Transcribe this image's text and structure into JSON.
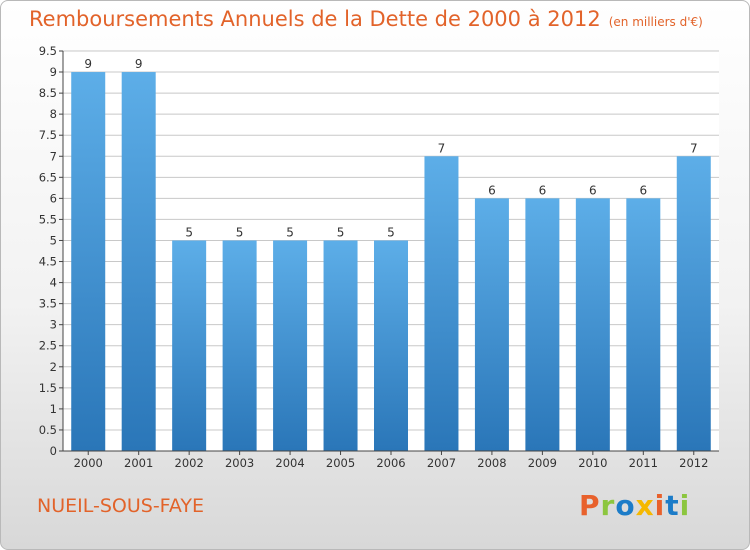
{
  "header": {
    "title": "Remboursements Annuels de la Dette de 2000 à 2012",
    "subtitle": "(en milliers d'€)"
  },
  "footer": {
    "commune": "NUEIL-SOUS-FAYE",
    "brand": "Proxiti"
  },
  "colors": {
    "title": "#e2632a",
    "bar_top": "#5daee8",
    "bar_bottom": "#2a76b8",
    "grid": "#c8c8c8",
    "brand_letters": [
      "#e8612c",
      "#8cc63f",
      "#1c7cc8",
      "#f5b800",
      "#e8612c",
      "#1c7cc8",
      "#8cc63f"
    ]
  },
  "chart_data": {
    "type": "bar",
    "categories": [
      "2000",
      "2001",
      "2002",
      "2003",
      "2004",
      "2005",
      "2006",
      "2007",
      "2008",
      "2009",
      "2010",
      "2011",
      "2012"
    ],
    "values": [
      9,
      9,
      5,
      5,
      5,
      5,
      5,
      7,
      6,
      6,
      6,
      6,
      7
    ],
    "data_labels": [
      "9",
      "9",
      "5",
      "5",
      "5",
      "5",
      "5",
      "7",
      "6",
      "6",
      "6",
      "6",
      "7"
    ],
    "y_ticks": [
      "0",
      "0.5",
      "1",
      "1.5",
      "2",
      "2.5",
      "3",
      "3.5",
      "4",
      "4.5",
      "5",
      "5.5",
      "6",
      "6.5",
      "7",
      "7.5",
      "8",
      "8.5",
      "9",
      "9.5"
    ],
    "ylim": [
      0,
      9.5
    ],
    "grid": true,
    "legend": "none"
  }
}
